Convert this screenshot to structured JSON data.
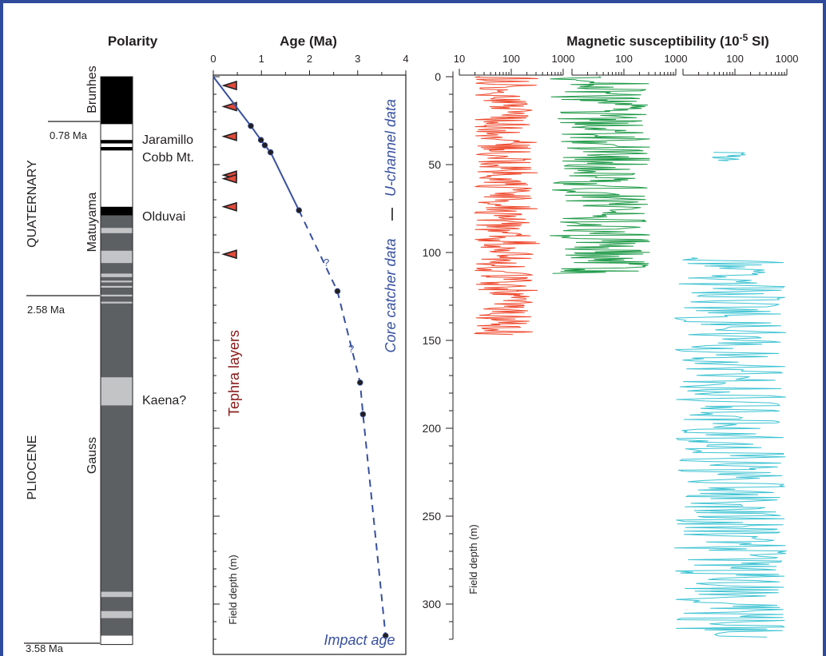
{
  "polarity_panel": {
    "title": "Polarity",
    "epochs": [
      "QUATERNARY",
      "PLIOCENE"
    ],
    "chrons": [
      "Brunhes",
      "Matuyama",
      "Gauss"
    ],
    "subchrons": [
      "Jaramillo",
      "Cobb Mt.",
      "Olduvai",
      "Kaena?"
    ],
    "boundary_ages": [
      "0.78 Ma",
      "2.58 Ma",
      "3.58 Ma"
    ]
  },
  "age_panel": {
    "title": "Age (Ma)",
    "ylabel": "Field depth (m)",
    "tephra_label": "Tephra layers",
    "uchannel_label": "U-channel data",
    "corecatcher_label": "Core catcher data",
    "impact_label": "Impact age",
    "question_mark": "?"
  },
  "susc_panel": {
    "title": "Magnetic susceptibility (10",
    "title_sup": "-5",
    "title_unit": " SI)",
    "ylabel": "Field depth (m)"
  },
  "colors": {
    "frame": "#2e4b9b",
    "agemodel": "#3850a0",
    "red_series": "#ef4b2f",
    "green_series": "#1f9a48",
    "cyan_series": "#3cc3d2",
    "tephra": "#e04a3a",
    "tephra_text": "#8a1a1a",
    "dark_gray": "#5d6063",
    "light_gray": "#c2c4c6"
  },
  "chart_data": {
    "type": "line",
    "polarity_column": {
      "ylim": [
        0,
        320
      ],
      "blocks": [
        {
          "top": 0,
          "bottom": 27,
          "polarity": "normal"
        },
        {
          "top": 27,
          "bottom": 36,
          "polarity": "reversed"
        },
        {
          "top": 36,
          "bottom": 38,
          "polarity": "normal"
        },
        {
          "top": 38,
          "bottom": 40,
          "polarity": "reversed"
        },
        {
          "top": 40,
          "bottom": 42,
          "polarity": "normal"
        },
        {
          "top": 42,
          "bottom": 74,
          "polarity": "reversed"
        },
        {
          "top": 74,
          "bottom": 79,
          "polarity": "normal"
        },
        {
          "top": 79,
          "bottom": 318,
          "polarity": "gauss"
        },
        {
          "top": 318,
          "bottom": 323,
          "polarity": "reversed"
        }
      ],
      "light_bands": [
        [
          86,
          89
        ],
        [
          99,
          106
        ],
        [
          112,
          114
        ],
        [
          116,
          117
        ],
        [
          119,
          120
        ],
        [
          124,
          125
        ],
        [
          128,
          129
        ],
        [
          171,
          187
        ],
        [
          293,
          296
        ],
        [
          304,
          308
        ]
      ]
    },
    "age_model": {
      "xlim": [
        0,
        4
      ],
      "xticks": [
        0,
        1,
        2,
        3,
        4
      ],
      "ylim": [
        0,
        320
      ],
      "yticks": [
        0,
        50,
        100,
        150,
        200,
        250,
        300
      ],
      "solid": [
        [
          0,
          0
        ],
        [
          0.78,
          28
        ],
        [
          0.99,
          36
        ],
        [
          1.07,
          39
        ],
        [
          1.19,
          43
        ],
        [
          1.78,
          76
        ]
      ],
      "dashed": [
        [
          1.78,
          76
        ],
        [
          2.58,
          122
        ],
        [
          3.05,
          174
        ],
        [
          3.11,
          192
        ],
        [
          3.58,
          318
        ]
      ],
      "points": [
        [
          0.78,
          28
        ],
        [
          0.99,
          36
        ],
        [
          1.07,
          39
        ],
        [
          1.19,
          43
        ],
        [
          1.78,
          76
        ],
        [
          2.58,
          122
        ],
        [
          3.05,
          174
        ],
        [
          3.11,
          192
        ],
        [
          3.58,
          318
        ]
      ],
      "tephra_depths": [
        5,
        17,
        34,
        56,
        58,
        74,
        101
      ]
    },
    "susceptibility": {
      "scale": "log",
      "xlim": [
        10,
        1000
      ],
      "panel_xticks": [
        "10",
        "100",
        "1000"
      ],
      "ylim": [
        0,
        320
      ],
      "yticks": [
        0,
        50,
        100,
        150,
        200,
        250,
        300
      ],
      "series": [
        {
          "depth_range": [
            0,
            147
          ],
          "log_range": [
            1.3,
            2.55
          ],
          "center_log": 1.85
        },
        {
          "depth_range": [
            0,
            112
          ],
          "log_range": [
            0.55,
            2.5
          ],
          "center_log": 1.65
        },
        {
          "depth_range": [
            43,
            48
          ],
          "log_range": [
            1.55,
            2.25
          ],
          "center_log": 1.9
        },
        {
          "depth_range": [
            103,
            319
          ],
          "log_range": [
            0.8,
            3.0
          ],
          "center_log": 2.0
        }
      ]
    }
  }
}
